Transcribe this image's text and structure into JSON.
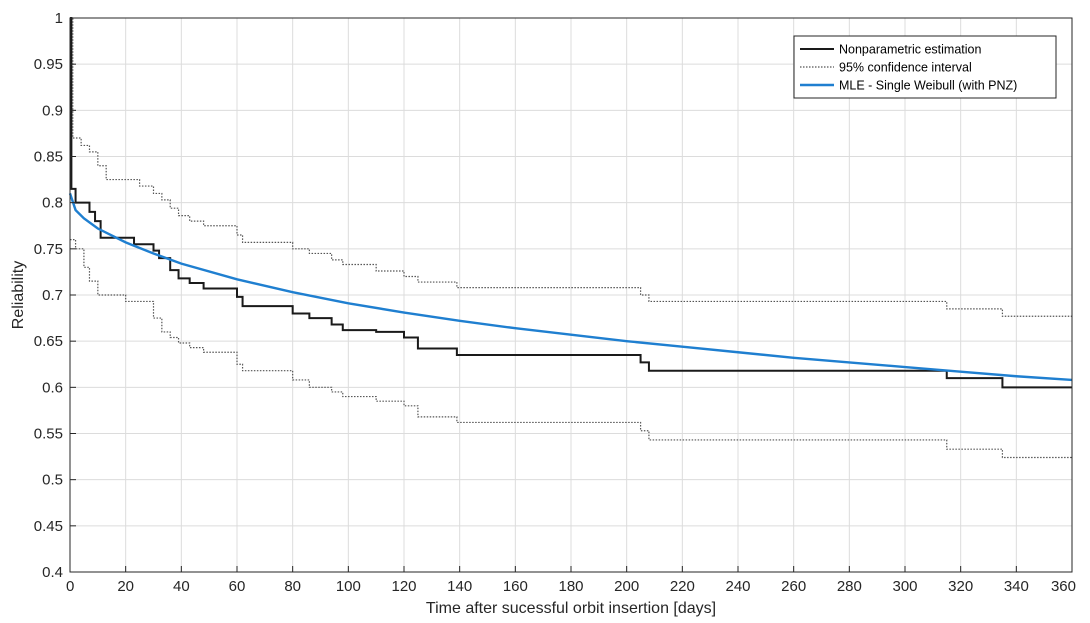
{
  "chart_data": {
    "type": "line",
    "title": "",
    "xlabel": "Time after sucessful orbit insertion [days]",
    "ylabel": "Reliability",
    "xlim": [
      0,
      360
    ],
    "ylim": [
      0.4,
      1
    ],
    "xticks": [
      0,
      20,
      40,
      60,
      80,
      100,
      120,
      140,
      160,
      180,
      200,
      220,
      240,
      260,
      280,
      300,
      320,
      340,
      360
    ],
    "yticks": [
      0.4,
      0.45,
      0.5,
      0.55,
      0.6,
      0.65,
      0.7,
      0.75,
      0.8,
      0.85,
      0.9,
      0.95,
      1
    ],
    "xtick_labels": [
      "0",
      "20",
      "40",
      "60",
      "80",
      "100",
      "120",
      "140",
      "160",
      "180",
      "200",
      "220",
      "240",
      "260",
      "280",
      "300",
      "320",
      "340",
      "360"
    ],
    "ytick_labels": [
      "0.4",
      "0.45",
      "0.5",
      "0.55",
      "0.6",
      "0.65",
      "0.7",
      "0.75",
      "0.8",
      "0.85",
      "0.9",
      "0.95",
      "1"
    ],
    "grid": true,
    "legend_position": "top-right",
    "series": [
      {
        "name": "Nonparametric estimation",
        "style": "step",
        "color": "#1a1a1a",
        "dash": "solid",
        "points": [
          [
            0,
            1.0
          ],
          [
            0.5,
            0.815
          ],
          [
            2,
            0.8
          ],
          [
            7,
            0.79
          ],
          [
            9,
            0.78
          ],
          [
            11,
            0.762
          ],
          [
            23,
            0.755
          ],
          [
            30,
            0.748
          ],
          [
            32,
            0.74
          ],
          [
            36,
            0.727
          ],
          [
            39,
            0.718
          ],
          [
            43,
            0.713
          ],
          [
            48,
            0.707
          ],
          [
            60,
            0.698
          ],
          [
            62,
            0.688
          ],
          [
            80,
            0.68
          ],
          [
            86,
            0.675
          ],
          [
            94,
            0.668
          ],
          [
            98,
            0.662
          ],
          [
            110,
            0.66
          ],
          [
            120,
            0.654
          ],
          [
            125,
            0.642
          ],
          [
            139,
            0.635
          ],
          [
            205,
            0.627
          ],
          [
            208,
            0.618
          ],
          [
            315,
            0.61
          ],
          [
            335,
            0.6
          ],
          [
            360,
            0.6
          ]
        ]
      },
      {
        "name": "95% confidence interval",
        "style": "step",
        "color": "#555555",
        "dash": "dotted",
        "points": [
          [
            0,
            1.0
          ],
          [
            1,
            0.87
          ],
          [
            4,
            0.862
          ],
          [
            7,
            0.855
          ],
          [
            10,
            0.84
          ],
          [
            13,
            0.825
          ],
          [
            25,
            0.818
          ],
          [
            30,
            0.81
          ],
          [
            33,
            0.803
          ],
          [
            36,
            0.794
          ],
          [
            39,
            0.786
          ],
          [
            43,
            0.78
          ],
          [
            48,
            0.775
          ],
          [
            60,
            0.765
          ],
          [
            62,
            0.757
          ],
          [
            80,
            0.75
          ],
          [
            86,
            0.745
          ],
          [
            94,
            0.738
          ],
          [
            98,
            0.733
          ],
          [
            110,
            0.726
          ],
          [
            120,
            0.72
          ],
          [
            125,
            0.714
          ],
          [
            139,
            0.708
          ],
          [
            205,
            0.7
          ],
          [
            208,
            0.693
          ],
          [
            315,
            0.685
          ],
          [
            335,
            0.677
          ],
          [
            360,
            0.677
          ]
        ]
      },
      {
        "name": "",
        "style": "step",
        "color": "#555555",
        "dash": "dotted",
        "points": [
          [
            0,
            0.76
          ],
          [
            2,
            0.75
          ],
          [
            5,
            0.73
          ],
          [
            7,
            0.715
          ],
          [
            10,
            0.7
          ],
          [
            20,
            0.693
          ],
          [
            30,
            0.675
          ],
          [
            33,
            0.66
          ],
          [
            36,
            0.654
          ],
          [
            39,
            0.648
          ],
          [
            43,
            0.643
          ],
          [
            48,
            0.638
          ],
          [
            60,
            0.625
          ],
          [
            62,
            0.618
          ],
          [
            80,
            0.608
          ],
          [
            86,
            0.6
          ],
          [
            94,
            0.595
          ],
          [
            98,
            0.59
          ],
          [
            110,
            0.585
          ],
          [
            120,
            0.58
          ],
          [
            125,
            0.568
          ],
          [
            139,
            0.562
          ],
          [
            205,
            0.553
          ],
          [
            208,
            0.543
          ],
          [
            315,
            0.533
          ],
          [
            335,
            0.524
          ],
          [
            360,
            0.524
          ]
        ]
      },
      {
        "name": "MLE - Single Weibull (with PNZ)",
        "style": "line",
        "color": "#1f7fd0",
        "dash": "solid",
        "points": [
          [
            0,
            0.81
          ],
          [
            2,
            0.792
          ],
          [
            5,
            0.783
          ],
          [
            10,
            0.772
          ],
          [
            20,
            0.757
          ],
          [
            30,
            0.745
          ],
          [
            40,
            0.734
          ],
          [
            60,
            0.717
          ],
          [
            80,
            0.703
          ],
          [
            100,
            0.691
          ],
          [
            120,
            0.681
          ],
          [
            140,
            0.672
          ],
          [
            160,
            0.664
          ],
          [
            180,
            0.657
          ],
          [
            200,
            0.65
          ],
          [
            220,
            0.644
          ],
          [
            240,
            0.638
          ],
          [
            260,
            0.632
          ],
          [
            280,
            0.627
          ],
          [
            300,
            0.622
          ],
          [
            320,
            0.617
          ],
          [
            340,
            0.612
          ],
          [
            360,
            0.608
          ]
        ]
      }
    ]
  }
}
